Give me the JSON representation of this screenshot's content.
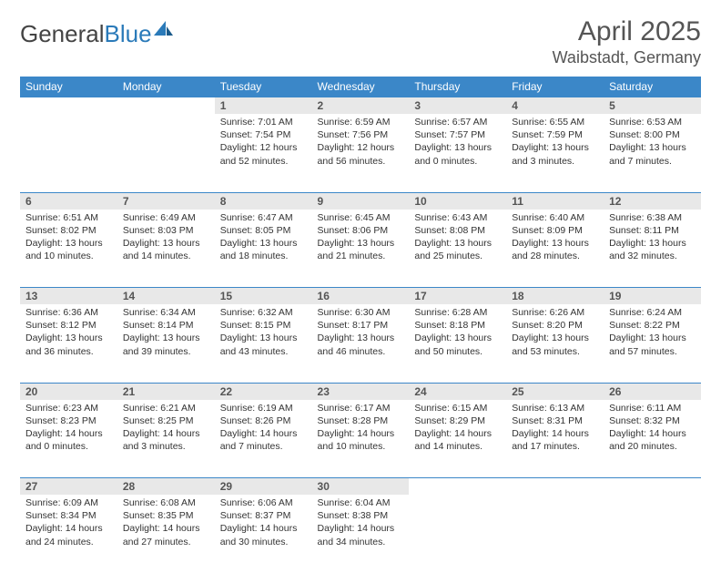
{
  "logo": {
    "part1": "General",
    "part2": "Blue"
  },
  "title": "April 2025",
  "location": "Waibstadt, Germany",
  "colors": {
    "header_bg": "#3b87c8",
    "header_fg": "#ffffff",
    "daynum_bg": "#e8e8e8",
    "border": "#3b87c8",
    "logo_blue": "#2a7ab9",
    "text": "#333333"
  },
  "weekdays": [
    "Sunday",
    "Monday",
    "Tuesday",
    "Wednesday",
    "Thursday",
    "Friday",
    "Saturday"
  ],
  "weeks": [
    [
      null,
      null,
      {
        "n": "1",
        "sr": "Sunrise: 7:01 AM",
        "ss": "Sunset: 7:54 PM",
        "dl": "Daylight: 12 hours and 52 minutes."
      },
      {
        "n": "2",
        "sr": "Sunrise: 6:59 AM",
        "ss": "Sunset: 7:56 PM",
        "dl": "Daylight: 12 hours and 56 minutes."
      },
      {
        "n": "3",
        "sr": "Sunrise: 6:57 AM",
        "ss": "Sunset: 7:57 PM",
        "dl": "Daylight: 13 hours and 0 minutes."
      },
      {
        "n": "4",
        "sr": "Sunrise: 6:55 AM",
        "ss": "Sunset: 7:59 PM",
        "dl": "Daylight: 13 hours and 3 minutes."
      },
      {
        "n": "5",
        "sr": "Sunrise: 6:53 AM",
        "ss": "Sunset: 8:00 PM",
        "dl": "Daylight: 13 hours and 7 minutes."
      }
    ],
    [
      {
        "n": "6",
        "sr": "Sunrise: 6:51 AM",
        "ss": "Sunset: 8:02 PM",
        "dl": "Daylight: 13 hours and 10 minutes."
      },
      {
        "n": "7",
        "sr": "Sunrise: 6:49 AM",
        "ss": "Sunset: 8:03 PM",
        "dl": "Daylight: 13 hours and 14 minutes."
      },
      {
        "n": "8",
        "sr": "Sunrise: 6:47 AM",
        "ss": "Sunset: 8:05 PM",
        "dl": "Daylight: 13 hours and 18 minutes."
      },
      {
        "n": "9",
        "sr": "Sunrise: 6:45 AM",
        "ss": "Sunset: 8:06 PM",
        "dl": "Daylight: 13 hours and 21 minutes."
      },
      {
        "n": "10",
        "sr": "Sunrise: 6:43 AM",
        "ss": "Sunset: 8:08 PM",
        "dl": "Daylight: 13 hours and 25 minutes."
      },
      {
        "n": "11",
        "sr": "Sunrise: 6:40 AM",
        "ss": "Sunset: 8:09 PM",
        "dl": "Daylight: 13 hours and 28 minutes."
      },
      {
        "n": "12",
        "sr": "Sunrise: 6:38 AM",
        "ss": "Sunset: 8:11 PM",
        "dl": "Daylight: 13 hours and 32 minutes."
      }
    ],
    [
      {
        "n": "13",
        "sr": "Sunrise: 6:36 AM",
        "ss": "Sunset: 8:12 PM",
        "dl": "Daylight: 13 hours and 36 minutes."
      },
      {
        "n": "14",
        "sr": "Sunrise: 6:34 AM",
        "ss": "Sunset: 8:14 PM",
        "dl": "Daylight: 13 hours and 39 minutes."
      },
      {
        "n": "15",
        "sr": "Sunrise: 6:32 AM",
        "ss": "Sunset: 8:15 PM",
        "dl": "Daylight: 13 hours and 43 minutes."
      },
      {
        "n": "16",
        "sr": "Sunrise: 6:30 AM",
        "ss": "Sunset: 8:17 PM",
        "dl": "Daylight: 13 hours and 46 minutes."
      },
      {
        "n": "17",
        "sr": "Sunrise: 6:28 AM",
        "ss": "Sunset: 8:18 PM",
        "dl": "Daylight: 13 hours and 50 minutes."
      },
      {
        "n": "18",
        "sr": "Sunrise: 6:26 AM",
        "ss": "Sunset: 8:20 PM",
        "dl": "Daylight: 13 hours and 53 minutes."
      },
      {
        "n": "19",
        "sr": "Sunrise: 6:24 AM",
        "ss": "Sunset: 8:22 PM",
        "dl": "Daylight: 13 hours and 57 minutes."
      }
    ],
    [
      {
        "n": "20",
        "sr": "Sunrise: 6:23 AM",
        "ss": "Sunset: 8:23 PM",
        "dl": "Daylight: 14 hours and 0 minutes."
      },
      {
        "n": "21",
        "sr": "Sunrise: 6:21 AM",
        "ss": "Sunset: 8:25 PM",
        "dl": "Daylight: 14 hours and 3 minutes."
      },
      {
        "n": "22",
        "sr": "Sunrise: 6:19 AM",
        "ss": "Sunset: 8:26 PM",
        "dl": "Daylight: 14 hours and 7 minutes."
      },
      {
        "n": "23",
        "sr": "Sunrise: 6:17 AM",
        "ss": "Sunset: 8:28 PM",
        "dl": "Daylight: 14 hours and 10 minutes."
      },
      {
        "n": "24",
        "sr": "Sunrise: 6:15 AM",
        "ss": "Sunset: 8:29 PM",
        "dl": "Daylight: 14 hours and 14 minutes."
      },
      {
        "n": "25",
        "sr": "Sunrise: 6:13 AM",
        "ss": "Sunset: 8:31 PM",
        "dl": "Daylight: 14 hours and 17 minutes."
      },
      {
        "n": "26",
        "sr": "Sunrise: 6:11 AM",
        "ss": "Sunset: 8:32 PM",
        "dl": "Daylight: 14 hours and 20 minutes."
      }
    ],
    [
      {
        "n": "27",
        "sr": "Sunrise: 6:09 AM",
        "ss": "Sunset: 8:34 PM",
        "dl": "Daylight: 14 hours and 24 minutes."
      },
      {
        "n": "28",
        "sr": "Sunrise: 6:08 AM",
        "ss": "Sunset: 8:35 PM",
        "dl": "Daylight: 14 hours and 27 minutes."
      },
      {
        "n": "29",
        "sr": "Sunrise: 6:06 AM",
        "ss": "Sunset: 8:37 PM",
        "dl": "Daylight: 14 hours and 30 minutes."
      },
      {
        "n": "30",
        "sr": "Sunrise: 6:04 AM",
        "ss": "Sunset: 8:38 PM",
        "dl": "Daylight: 14 hours and 34 minutes."
      },
      null,
      null,
      null
    ]
  ]
}
